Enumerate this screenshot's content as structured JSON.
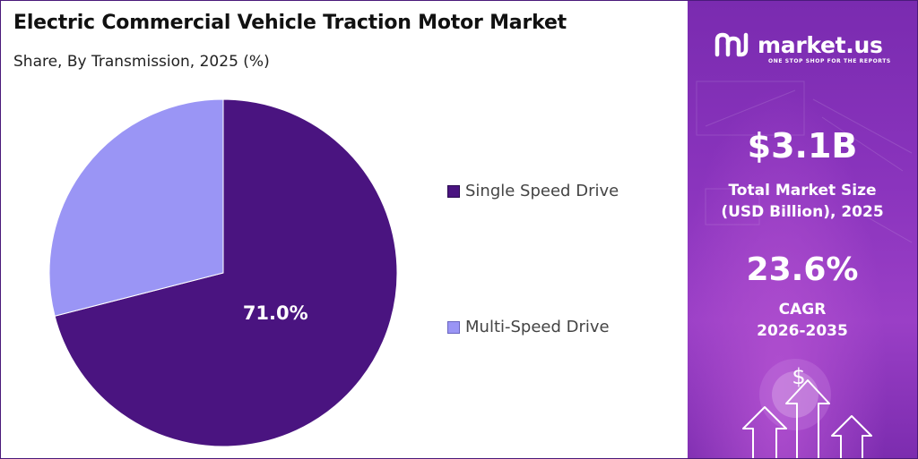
{
  "title": "Electric Commercial Vehicle Traction Motor Market",
  "subtitle": "Share, By Transmission, 2025 (%)",
  "chart_data": {
    "type": "pie",
    "title": "Electric Commercial Vehicle Traction Motor Market",
    "subtitle": "Share, By Transmission, 2025 (%)",
    "categories": [
      "Single Speed Drive",
      "Multi-Speed Drive"
    ],
    "values": [
      71.0,
      29.0
    ],
    "colors": [
      "#4a1480",
      "#9a95f5"
    ],
    "data_labels": [
      "71.0%",
      ""
    ],
    "legend_position": "right"
  },
  "sidebar": {
    "brand": "market.us",
    "tagline": "ONE STOP SHOP FOR THE REPORTS",
    "market_size_value": "$3.1B",
    "market_size_label_line1": "Total Market Size",
    "market_size_label_line2": "(USD Billion), 2025",
    "cagr_value": "23.6%",
    "cagr_label_line1": "CAGR",
    "cagr_label_line2": "2026-2035",
    "dollar_symbol": "$"
  }
}
